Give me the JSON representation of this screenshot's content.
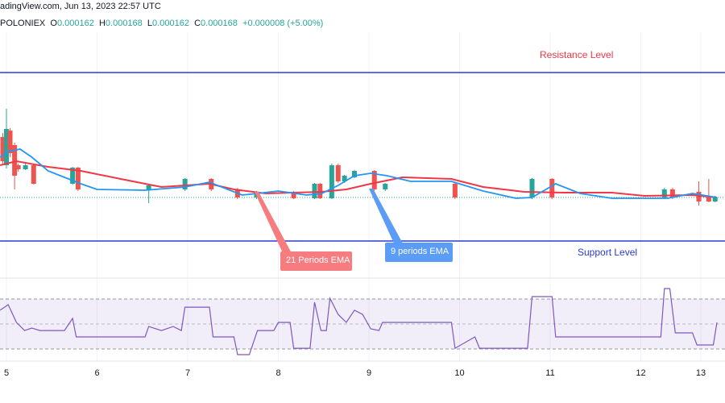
{
  "header": {
    "source_line": "adingView.com, Jun 13, 2023 22:57 UTC",
    "exchange": "POLONIEX",
    "open_label": "O",
    "open": "0.000162",
    "high_label": "H",
    "high": "0.000168",
    "low_label": "L",
    "low": "0.000162",
    "close_label": "C",
    "close": "0.000168",
    "change": "+0.000008 (+5.00%)"
  },
  "annotations": {
    "resistance": "Resistance Level",
    "support": "Support Level",
    "ema21": "21 Periods EMA",
    "ema9": "9 periods EMA"
  },
  "colors": {
    "up": "#26a69a",
    "down": "#ef5350",
    "ema21": "#f23645",
    "ema9": "#2196f3",
    "levels": "#2a3bd6",
    "rsi": "#7e57c2",
    "ema21_callout": "#f77c80",
    "ema9_callout": "#5b9cf6"
  },
  "chart_data": {
    "type": "candlestick",
    "x_ticks": [
      "5",
      "6",
      "7",
      "8",
      "9",
      "10",
      "11",
      "12",
      "13"
    ],
    "resistance_level": 0.0002455,
    "support_level": 0.000141,
    "current_price": 0.000168,
    "candles": [
      {
        "x": 4.96,
        "o": 0.0002055,
        "h": 0.000208,
        "l": 0.000188,
        "c": 0.0001905
      },
      {
        "x": 5.0,
        "o": 0.000188,
        "h": 0.000223,
        "l": 0.000186,
        "c": 0.0002105
      },
      {
        "x": 5.04,
        "o": 0.0002095,
        "h": 0.000211,
        "l": 0.000193,
        "c": 0.0001955
      },
      {
        "x": 5.09,
        "o": 0.0002005,
        "h": 0.000202,
        "l": 0.000173,
        "c": 0.0001815
      },
      {
        "x": 5.13,
        "o": 0.000188,
        "h": 0.000189,
        "l": 0.000184,
        "c": 0.0001855
      },
      {
        "x": 5.21,
        "o": 0.0001855,
        "h": 0.000189,
        "l": 0.000185,
        "c": 0.000188
      },
      {
        "x": 5.3,
        "o": 0.000188,
        "h": 0.000189,
        "l": 0.000176,
        "c": 0.0001765
      },
      {
        "x": 5.73,
        "o": 0.0001765,
        "h": 0.000187,
        "l": 0.000176,
        "c": 0.0001865
      },
      {
        "x": 5.79,
        "o": 0.0001865,
        "h": 0.000187,
        "l": 0.000172,
        "c": 0.000173
      },
      {
        "x": 6.57,
        "o": 0.000173,
        "h": 0.000176,
        "l": 0.0001645,
        "c": 0.0001755
      },
      {
        "x": 6.97,
        "o": 0.000173,
        "h": 0.00018,
        "l": 0.000172,
        "c": 0.0001795
      },
      {
        "x": 7.26,
        "o": 0.0001795,
        "h": 0.00018,
        "l": 0.000172,
        "c": 0.000173
      },
      {
        "x": 7.55,
        "o": 0.000173,
        "h": 0.000174,
        "l": 0.000167,
        "c": 0.000168
      },
      {
        "x": 7.76,
        "o": 0.000168,
        "h": 0.000172,
        "l": 0.000167,
        "c": 0.0001715
      },
      {
        "x": 8.17,
        "o": 0.0001715,
        "h": 0.000172,
        "l": 0.000167,
        "c": 0.0001675
      },
      {
        "x": 8.4,
        "o": 0.0001675,
        "h": 0.000177,
        "l": 0.000167,
        "c": 0.0001765
      },
      {
        "x": 8.46,
        "o": 0.0001765,
        "h": 0.000177,
        "l": 0.000167,
        "c": 0.0001675
      },
      {
        "x": 8.59,
        "o": 0.0001675,
        "h": 0.000189,
        "l": 0.000167,
        "c": 0.000188
      },
      {
        "x": 8.66,
        "o": 0.000188,
        "h": 0.000189,
        "l": 0.000177,
        "c": 0.000178
      },
      {
        "x": 8.73,
        "o": 0.000178,
        "h": 0.000182,
        "l": 0.000177,
        "c": 0.0001815
      },
      {
        "x": 8.84,
        "o": 0.0001805,
        "h": 0.000185,
        "l": 0.00018,
        "c": 0.0001845
      },
      {
        "x": 9.06,
        "o": 0.0001845,
        "h": 0.000185,
        "l": 0.000172,
        "c": 0.000173
      },
      {
        "x": 9.18,
        "o": 0.000173,
        "h": 0.000177,
        "l": 0.000172,
        "c": 0.0001765
      },
      {
        "x": 9.95,
        "o": 0.0001765,
        "h": 0.000177,
        "l": 0.000167,
        "c": 0.000168
      },
      {
        "x": 10.8,
        "o": 0.000168,
        "h": 0.00018,
        "l": 0.000167,
        "c": 0.0001795
      },
      {
        "x": 11.02,
        "o": 0.0001795,
        "h": 0.00018,
        "l": 0.000167,
        "c": 0.000168
      },
      {
        "x": 12.26,
        "o": 0.000168,
        "h": 0.000174,
        "l": 0.000167,
        "c": 0.000173
      },
      {
        "x": 12.35,
        "o": 0.000173,
        "h": 0.000174,
        "l": 0.000167,
        "c": 0.000168
      },
      {
        "x": 12.64,
        "o": 0.0001715,
        "h": 0.000178,
        "l": 0.000163,
        "c": 0.0001655
      },
      {
        "x": 12.75,
        "o": 0.000168,
        "h": 0.0001795,
        "l": 0.000165,
        "c": 0.0001655
      },
      {
        "x": 12.82,
        "o": 0.0001655,
        "h": 0.000169,
        "l": 0.000165,
        "c": 0.000168
      }
    ],
    "ema21": [
      [
        4.93,
        0.000188
      ],
      [
        5.11,
        0.0001905
      ],
      [
        5.46,
        0.000187
      ],
      [
        5.82,
        0.0001845
      ],
      [
        6.26,
        0.0001795
      ],
      [
        6.71,
        0.0001745
      ],
      [
        7.24,
        0.0001765
      ],
      [
        7.51,
        0.000173
      ],
      [
        7.86,
        0.0001705
      ],
      [
        8.48,
        0.0001715
      ],
      [
        8.75,
        0.000173
      ],
      [
        9.02,
        0.0001765
      ],
      [
        9.37,
        0.0001805
      ],
      [
        9.91,
        0.0001795
      ],
      [
        10.26,
        0.0001745
      ],
      [
        10.71,
        0.0001715
      ],
      [
        11.15,
        0.000171
      ],
      [
        11.68,
        0.000171
      ],
      [
        12.04,
        0.000169
      ],
      [
        12.57,
        0.0001695
      ],
      [
        12.84,
        0.000168
      ]
    ],
    "ema9": [
      [
        4.93,
        0.000193
      ],
      [
        5.02,
        0.0001965
      ],
      [
        5.15,
        0.000198
      ],
      [
        5.28,
        0.000193
      ],
      [
        5.46,
        0.0001845
      ],
      [
        5.64,
        0.0001805
      ],
      [
        5.82,
        0.0001765
      ],
      [
        6.0,
        0.000173
      ],
      [
        6.53,
        0.0001725
      ],
      [
        6.97,
        0.0001745
      ],
      [
        7.24,
        0.0001775
      ],
      [
        7.6,
        0.0001695
      ],
      [
        7.77,
        0.0001705
      ],
      [
        8.0,
        0.000172
      ],
      [
        8.31,
        0.0001695
      ],
      [
        8.48,
        0.0001705
      ],
      [
        8.66,
        0.0001755
      ],
      [
        8.84,
        0.0001815
      ],
      [
        9.02,
        0.000183
      ],
      [
        9.2,
        0.0001815
      ],
      [
        9.46,
        0.000178
      ],
      [
        9.91,
        0.000178
      ],
      [
        10.26,
        0.000172
      ],
      [
        10.62,
        0.0001675
      ],
      [
        10.8,
        0.000168
      ],
      [
        11.06,
        0.0001765
      ],
      [
        11.33,
        0.0001705
      ],
      [
        11.68,
        0.0001675
      ],
      [
        12.3,
        0.0001675
      ],
      [
        12.57,
        0.0001705
      ],
      [
        12.84,
        0.000168
      ]
    ],
    "rsi": {
      "upper": 70,
      "middle": 50,
      "lower": 30,
      "values": [
        [
          4.93,
          61
        ],
        [
          5.02,
          65.5
        ],
        [
          5.11,
          51.3
        ],
        [
          5.2,
          44.8
        ],
        [
          5.28,
          46.8
        ],
        [
          5.37,
          44.8
        ],
        [
          5.64,
          44.8
        ],
        [
          5.73,
          54.5
        ],
        [
          5.77,
          39.7
        ],
        [
          6.53,
          39.7
        ],
        [
          6.57,
          48
        ],
        [
          6.71,
          44.8
        ],
        [
          6.84,
          48
        ],
        [
          6.93,
          44.8
        ],
        [
          6.97,
          63.5
        ],
        [
          7.24,
          63.5
        ],
        [
          7.28,
          39.7
        ],
        [
          7.51,
          39.7
        ],
        [
          7.55,
          25.5
        ],
        [
          7.68,
          25.5
        ],
        [
          7.77,
          44.8
        ],
        [
          7.95,
          44.8
        ],
        [
          8.0,
          51.3
        ],
        [
          8.13,
          51.3
        ],
        [
          8.17,
          30.6
        ],
        [
          8.35,
          30.6
        ],
        [
          8.4,
          67.4
        ],
        [
          8.47,
          44.8
        ],
        [
          8.53,
          44.8
        ],
        [
          8.57,
          70.6
        ],
        [
          8.66,
          57.7
        ],
        [
          8.75,
          51.3
        ],
        [
          8.84,
          61
        ],
        [
          8.93,
          57.7
        ],
        [
          9.02,
          46.1
        ],
        [
          9.11,
          44.8
        ],
        [
          9.15,
          51.3
        ],
        [
          9.91,
          51.3
        ],
        [
          9.95,
          30.6
        ],
        [
          10.17,
          39.7
        ],
        [
          10.22,
          30.6
        ],
        [
          10.75,
          30.6
        ],
        [
          10.8,
          71.9
        ],
        [
          11.02,
          71.9
        ],
        [
          11.06,
          39.7
        ],
        [
          12.22,
          39.7
        ],
        [
          12.26,
          78.4
        ],
        [
          12.32,
          78.4
        ],
        [
          12.38,
          42.9
        ],
        [
          12.57,
          42.9
        ],
        [
          12.62,
          33.2
        ],
        [
          12.8,
          33.2
        ],
        [
          12.84,
          51.3
        ]
      ]
    }
  }
}
